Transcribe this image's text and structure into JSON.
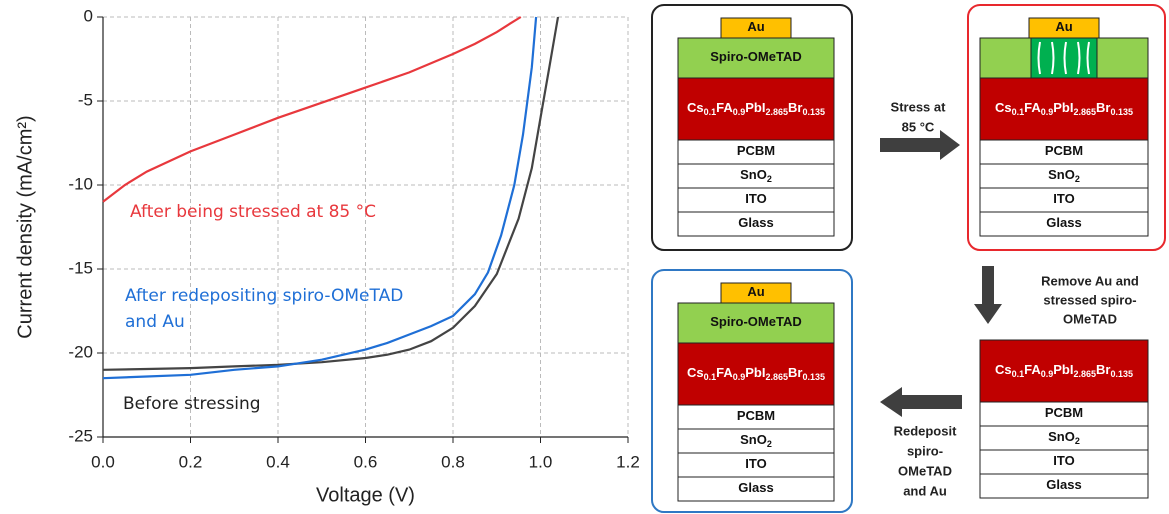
{
  "chart_data": {
    "type": "line",
    "xlabel": "Voltage (V)",
    "ylabel": "Current density (mA/cm²)",
    "xlim": [
      0,
      1.2
    ],
    "ylim": [
      -25,
      0
    ],
    "xticks": [
      {
        "value": 0,
        "label": "0.0"
      },
      {
        "value": 0.2,
        "label": "0.2"
      },
      {
        "value": 0.4,
        "label": "0.4"
      },
      {
        "value": 0.6,
        "label": "0.6"
      },
      {
        "value": 0.8,
        "label": "0.8"
      },
      {
        "value": 1,
        "label": "1.0"
      },
      {
        "value": 1.2,
        "label": "1.2"
      }
    ],
    "yticks": [
      0,
      -5,
      -10,
      -15,
      -20,
      -25
    ],
    "grid": true,
    "series": [
      {
        "name": "Before stressing",
        "color": "#444444",
        "x": [
          0,
          0.1,
          0.2,
          0.3,
          0.4,
          0.5,
          0.6,
          0.65,
          0.7,
          0.75,
          0.8,
          0.85,
          0.9,
          0.95,
          0.98,
          1.0,
          1.02,
          1.04
        ],
        "values": [
          -21.0,
          -20.95,
          -20.9,
          -20.8,
          -20.7,
          -20.55,
          -20.3,
          -20.1,
          -19.8,
          -19.3,
          -18.5,
          -17.2,
          -15.3,
          -12,
          -9,
          -6,
          -3,
          0
        ]
      },
      {
        "name": "After redepositing spiro-OMeTAD and Au",
        "color": "#1f6fd6",
        "x": [
          0,
          0.1,
          0.2,
          0.3,
          0.4,
          0.5,
          0.6,
          0.65,
          0.7,
          0.75,
          0.8,
          0.85,
          0.88,
          0.91,
          0.94,
          0.96,
          0.98,
          0.99
        ],
        "values": [
          -21.5,
          -21.4,
          -21.3,
          -21.0,
          -20.8,
          -20.4,
          -19.8,
          -19.4,
          -18.9,
          -18.4,
          -17.8,
          -16.5,
          -15.2,
          -13,
          -10,
          -7,
          -3,
          0
        ]
      },
      {
        "name": "After being stressed at 85 °C",
        "color": "#e8383d",
        "x": [
          0,
          0.05,
          0.1,
          0.2,
          0.3,
          0.4,
          0.5,
          0.6,
          0.7,
          0.8,
          0.85,
          0.9,
          0.93,
          0.955
        ],
        "values": [
          -11,
          -10,
          -9.2,
          -8,
          -7,
          -6,
          -5.1,
          -4.2,
          -3.3,
          -2.2,
          -1.6,
          -0.9,
          -0.4,
          0
        ]
      }
    ],
    "annotations": [
      {
        "lines": [
          "After being stressed at 85 °C"
        ],
        "color": "#e8383d"
      },
      {
        "lines": [
          "After redepositing spiro-OMeTAD",
          "and Au"
        ],
        "color": "#1f6fd6"
      },
      {
        "lines": [
          "Before stressing"
        ],
        "color": "#222222"
      }
    ]
  },
  "diagrams": [
    {
      "border": "#222222",
      "layers": [
        {
          "label": [
            "Au"
          ],
          "color": "#ffc000"
        },
        {
          "label": [
            "Spiro-OMeTAD"
          ],
          "color": "#92d050"
        },
        {
          "label": [
            "Cs",
            "0.1",
            "FA",
            "0.9",
            "PbI",
            "2.865",
            "Br",
            "0.135"
          ],
          "color": "#c00000"
        },
        {
          "label": [
            "PCBM"
          ],
          "color": "#ffffff"
        },
        {
          "label": [
            "SnO",
            "2"
          ],
          "color": "#ffffff"
        },
        {
          "label": [
            "ITO"
          ],
          "color": "#ffffff"
        },
        {
          "label": [
            "Glass"
          ],
          "color": "#ffffff"
        }
      ]
    },
    {
      "border": "#e8282d",
      "layers": [
        {
          "label": [
            "Au"
          ],
          "color": "#ffc000"
        },
        {
          "color": "#92d050",
          "inset": "#00b050"
        },
        {
          "label": [
            "Cs",
            "0.1",
            "FA",
            "0.9",
            "PbI",
            "2.865",
            "Br",
            "0.135"
          ],
          "color": "#c00000"
        },
        {
          "label": [
            "PCBM"
          ],
          "color": "#ffffff"
        },
        {
          "label": [
            "SnO",
            "2"
          ],
          "color": "#ffffff"
        },
        {
          "label": [
            "ITO"
          ],
          "color": "#ffffff"
        },
        {
          "label": [
            "Glass"
          ],
          "color": "#ffffff"
        }
      ]
    },
    {
      "border": "#2f78c4",
      "layers": [
        {
          "label": [
            "Au"
          ],
          "color": "#ffc000"
        },
        {
          "label": [
            "Spiro-OMeTAD"
          ],
          "color": "#92d050"
        },
        {
          "label": [
            "Cs",
            "0.1",
            "FA",
            "0.9",
            "PbI",
            "2.865",
            "Br",
            "0.135"
          ],
          "color": "#c00000"
        },
        {
          "label": [
            "PCBM"
          ],
          "color": "#ffffff"
        },
        {
          "label": [
            "SnO",
            "2"
          ],
          "color": "#ffffff"
        },
        {
          "label": [
            "ITO"
          ],
          "color": "#ffffff"
        },
        {
          "label": [
            "Glass"
          ],
          "color": "#ffffff"
        }
      ]
    },
    {
      "layers": [
        {
          "label": [
            "Cs",
            "0.1",
            "FA",
            "0.9",
            "PbI",
            "2.865",
            "Br",
            "0.135"
          ],
          "color": "#c00000"
        },
        {
          "label": [
            "PCBM"
          ],
          "color": "#ffffff"
        },
        {
          "label": [
            "SnO",
            "2"
          ],
          "color": "#ffffff"
        },
        {
          "label": [
            "ITO"
          ],
          "color": "#ffffff"
        },
        {
          "label": [
            "Glass"
          ],
          "color": "#ffffff"
        }
      ]
    }
  ],
  "steps": [
    {
      "lines": [
        "Stress at",
        "85 °C"
      ]
    },
    {
      "lines": [
        "Remove Au and",
        "stressed spiro-",
        "OMeTAD"
      ]
    },
    {
      "lines": [
        "Redeposit",
        "spiro-",
        "OMeTAD",
        "and Au"
      ]
    }
  ]
}
